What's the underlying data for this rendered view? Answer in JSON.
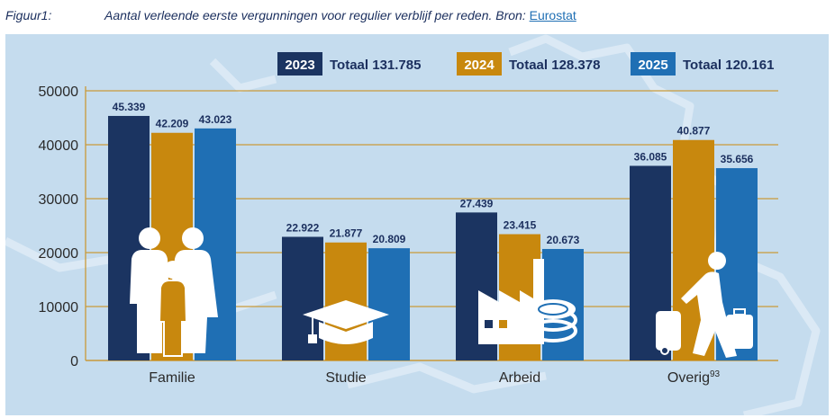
{
  "figure_label": "Figuur1:",
  "caption_text": "Aantal verleende eerste vergunningen voor regulier verblijf per reden. Bron: ",
  "caption_link": "Eurostat",
  "colors": {
    "y2023": "#1b3461",
    "y2024": "#c8880e",
    "y2025": "#1f6fb4",
    "panel_bg": "#c5dcee",
    "grid": "#c99a3a",
    "icon": "#ffffff"
  },
  "chart_data": {
    "type": "bar",
    "categories": [
      "Familie",
      "Studie",
      "Arbeid",
      "Overig"
    ],
    "category_superscripts": [
      "",
      "",
      "",
      "93"
    ],
    "series": [
      {
        "name": "2023",
        "total_label": "Totaal 131.785",
        "values": [
          45339,
          22922,
          27439,
          36085
        ],
        "value_labels": [
          "45.339",
          "22.922",
          "27.439",
          "36.085"
        ]
      },
      {
        "name": "2024",
        "total_label": "Totaal 128.378",
        "values": [
          42209,
          21877,
          23415,
          40877
        ],
        "value_labels": [
          "42.209",
          "21.877",
          "23.415",
          "40.877"
        ]
      },
      {
        "name": "2025",
        "total_label": "Totaal 120.161",
        "values": [
          43023,
          20809,
          20673,
          35656
        ],
        "value_labels": [
          "43.023",
          "20.809",
          "20.673",
          "35.656"
        ]
      }
    ],
    "yticks": [
      "0",
      "10000",
      "20000",
      "30000",
      "40000",
      "50000"
    ],
    "ylim": [
      0,
      50000
    ],
    "grid": true,
    "legend_position": "top",
    "category_icons": [
      "family-icon",
      "graduation-cap-icon",
      "factory-coins-icon",
      "traveler-luggage-icon"
    ]
  }
}
